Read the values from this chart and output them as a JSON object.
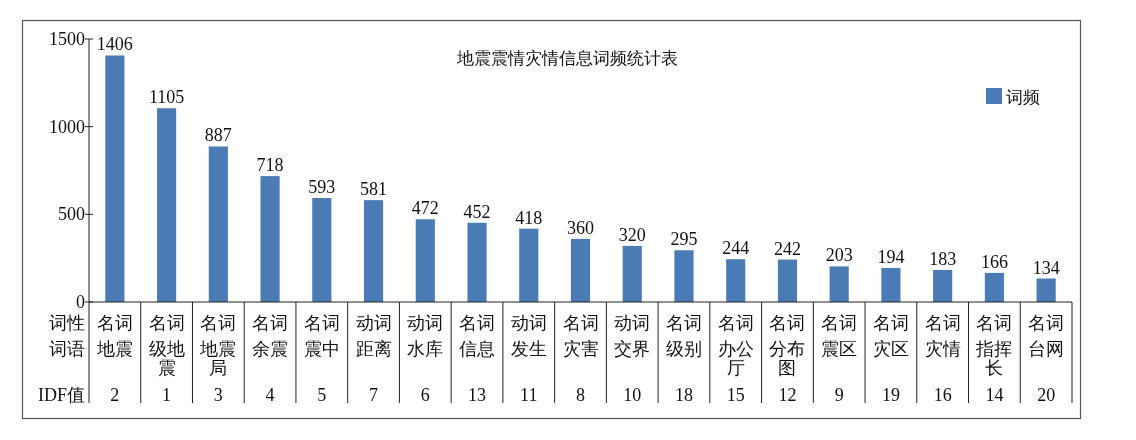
{
  "chart_data": {
    "type": "bar",
    "title": "地震震情灾情信息词频统计表",
    "xlabel": "词语",
    "categories": [
      "地震",
      "级地震",
      "地震局",
      "余震",
      "震中",
      "距离",
      "水库",
      "信息",
      "发生",
      "灾害",
      "交界",
      "级别",
      "办公厅",
      "分布图",
      "震区",
      "灾区",
      "灾情",
      "指挥长",
      "台网"
    ],
    "series": [
      {
        "name": "词频",
        "color": "#4a7bb4",
        "values": [
          1406,
          1105,
          887,
          718,
          593,
          581,
          472,
          452,
          418,
          360,
          320,
          295,
          244,
          242,
          203,
          194,
          183,
          166,
          134
        ]
      }
    ],
    "ylim": [
      0,
      1500
    ],
    "yticks": [
      0,
      500,
      1000,
      1500
    ],
    "data_labels": true,
    "legend": "top right",
    "annotations": [
      "词性",
      "名词",
      "名词",
      "名词",
      "名词",
      "名词",
      "动词",
      "动词",
      "名词",
      "动词",
      "名词",
      "动词",
      "名词",
      "名词",
      "名词",
      "名词",
      "名词",
      "名词",
      "名词",
      "名词",
      "IDF值",
      "2",
      "1",
      "3",
      "4",
      "5",
      "7",
      "6",
      "13",
      "11",
      "8",
      "10",
      "18",
      "15",
      "12",
      "9",
      "19",
      "16",
      "14",
      "20"
    ]
  }
}
